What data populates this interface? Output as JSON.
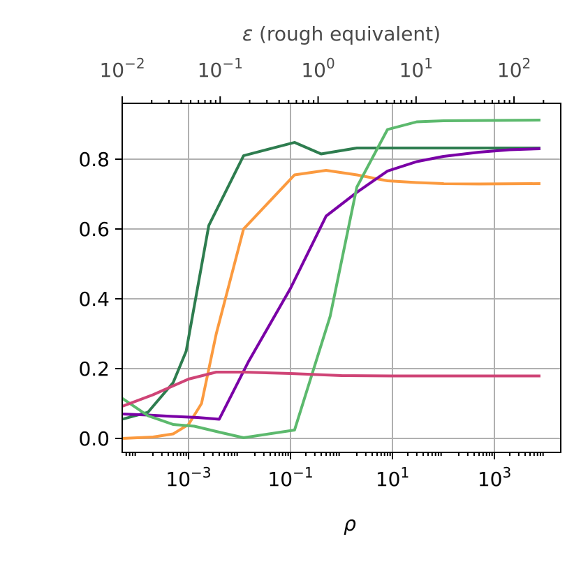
{
  "chart_data": {
    "type": "line",
    "xlabel": "ρ",
    "x_scale": "log",
    "xlim": [
      5e-05,
      20000
    ],
    "ylim": [
      -0.04,
      0.96
    ],
    "grid": true,
    "xticks": [
      {
        "value": 0.001,
        "base": "10",
        "exp": "−3"
      },
      {
        "value": 0.1,
        "base": "10",
        "exp": "−1"
      },
      {
        "value": 10,
        "base": "10",
        "exp": "1"
      },
      {
        "value": 1000,
        "base": "10",
        "exp": "3"
      }
    ],
    "yticks": [
      {
        "value": 0.0,
        "label": "0.0"
      },
      {
        "value": 0.2,
        "label": "0.2"
      },
      {
        "value": 0.4,
        "label": "0.4"
      },
      {
        "value": 0.6,
        "label": "0.6"
      },
      {
        "value": 0.8,
        "label": "0.8"
      }
    ],
    "top_axis": {
      "label_prefix": "ε",
      "label_rest": " (rough equivalent)",
      "scale": "log",
      "xlim": [
        0.01,
        300
      ],
      "ticks": [
        {
          "value": 0.01,
          "base": "10",
          "exp": "−2"
        },
        {
          "value": 0.1,
          "base": "10",
          "exp": "−1"
        },
        {
          "value": 1,
          "base": "10",
          "exp": "0"
        },
        {
          "value": 10,
          "base": "10",
          "exp": "1"
        },
        {
          "value": 100,
          "base": "10",
          "exp": "2"
        }
      ]
    },
    "series": [
      {
        "color": "#2e7d4f",
        "x": [
          5e-05,
          0.00016,
          0.0005,
          0.0009,
          0.0025,
          0.012,
          0.12,
          0.4,
          2,
          10,
          100,
          1000,
          8000
        ],
        "y": [
          0.055,
          0.075,
          0.16,
          0.25,
          0.61,
          0.81,
          0.848,
          0.815,
          0.832,
          0.832,
          0.832,
          0.832,
          0.832
        ]
      },
      {
        "color": "#fb9a3f",
        "x": [
          5e-05,
          0.0002,
          0.0005,
          0.001,
          0.0018,
          0.0035,
          0.012,
          0.12,
          0.5,
          2,
          8,
          30,
          100,
          500,
          8000
        ],
        "y": [
          0.0,
          0.004,
          0.013,
          0.04,
          0.1,
          0.3,
          0.6,
          0.755,
          0.768,
          0.755,
          0.738,
          0.733,
          0.73,
          0.729,
          0.73
        ]
      },
      {
        "color": "#7a00a6",
        "x": [
          5e-05,
          0.00016,
          0.0005,
          0.0015,
          0.004,
          0.015,
          0.1,
          0.5,
          2,
          8,
          30,
          100,
          500,
          2000,
          8000
        ],
        "y": [
          0.07,
          0.067,
          0.063,
          0.06,
          0.055,
          0.22,
          0.43,
          0.637,
          0.705,
          0.766,
          0.793,
          0.808,
          0.82,
          0.827,
          0.83
        ]
      },
      {
        "color": "#5cb96d",
        "x": [
          5e-05,
          0.00016,
          0.0005,
          0.0013,
          0.004,
          0.012,
          0.12,
          0.6,
          2,
          8,
          30,
          100,
          1000,
          8000
        ],
        "y": [
          0.115,
          0.065,
          0.04,
          0.035,
          0.018,
          0.002,
          0.024,
          0.35,
          0.72,
          0.885,
          0.907,
          0.91,
          0.911,
          0.912
        ]
      },
      {
        "color": "#cf4476",
        "x": [
          5e-05,
          0.0002,
          0.001,
          0.0035,
          0.012,
          0.1,
          1,
          10,
          100,
          1000,
          8000
        ],
        "y": [
          0.092,
          0.125,
          0.17,
          0.19,
          0.19,
          0.186,
          0.18,
          0.179,
          0.179,
          0.179,
          0.179
        ]
      }
    ]
  }
}
